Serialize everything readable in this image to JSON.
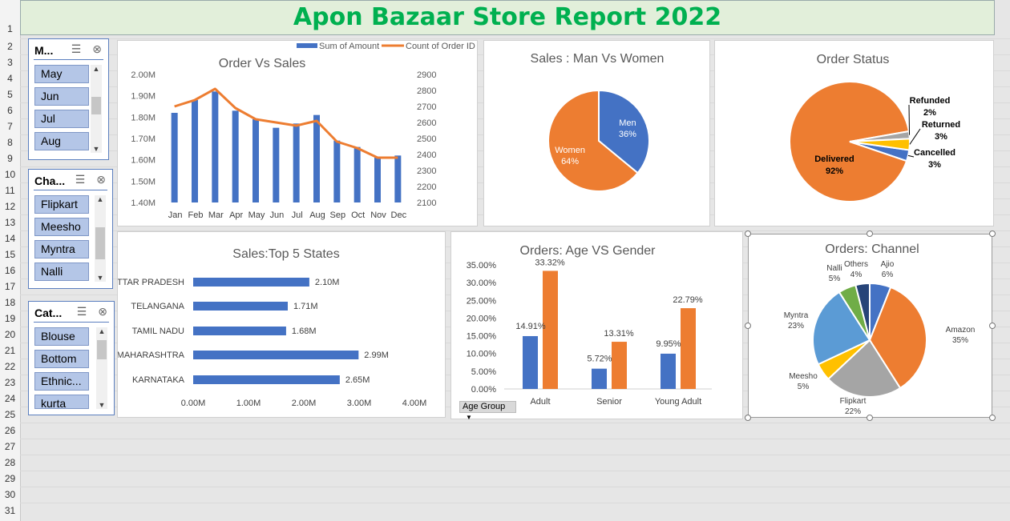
{
  "sheet": {
    "title": "Apon Bazaar Store Report 2022",
    "row_numbers": [
      "1",
      "2",
      "3",
      "4",
      "5",
      "6",
      "7",
      "8",
      "9",
      "10",
      "11",
      "12",
      "13",
      "14",
      "15",
      "16",
      "17",
      "18",
      "19",
      "20",
      "21",
      "22",
      "23",
      "24",
      "25",
      "26",
      "27",
      "28",
      "29",
      "30",
      "31"
    ]
  },
  "slicers": {
    "month": {
      "header": "M...",
      "items": [
        "May",
        "Jun",
        "Jul",
        "Aug"
      ]
    },
    "channel": {
      "header": "Cha...",
      "items": [
        "Flipkart",
        "Meesho",
        "Myntra",
        "Nalli"
      ]
    },
    "category": {
      "header": "Cat...",
      "items": [
        "Blouse",
        "Bottom",
        "Ethnic...",
        "kurta"
      ]
    }
  },
  "age_group_button": "Age Group",
  "colors": {
    "blue": "#4472c4",
    "orange": "#ed7d31",
    "gray": "#a5a5a5",
    "yellow": "#ffc000",
    "lightblue": "#5b9bd5",
    "green": "#70ad47",
    "navy": "#264478",
    "title_green": "#00b050"
  },
  "chart_data": [
    {
      "id": "order_vs_sales",
      "type": "bar",
      "title": "Order Vs Sales",
      "categories": [
        "Jan",
        "Feb",
        "Mar",
        "Apr",
        "May",
        "Jun",
        "Jul",
        "Aug",
        "Sep",
        "Oct",
        "Nov",
        "Dec"
      ],
      "series": [
        {
          "name": "Sum of Amount",
          "type": "bar",
          "axis": "left",
          "values": [
            1.82,
            1.88,
            1.92,
            1.83,
            1.79,
            1.75,
            1.77,
            1.81,
            1.69,
            1.66,
            1.61,
            1.62
          ]
        },
        {
          "name": "Count of Order ID",
          "type": "line",
          "axis": "right",
          "values": [
            2700,
            2740,
            2810,
            2690,
            2620,
            2600,
            2580,
            2610,
            2480,
            2440,
            2380,
            2380
          ]
        }
      ],
      "ylim_left": [
        1.4,
        2.0
      ],
      "ytick_labels_left": [
        "1.40M",
        "1.50M",
        "1.60M",
        "1.70M",
        "1.80M",
        "1.90M",
        "2.00M"
      ],
      "ylim_right": [
        2100,
        2900
      ],
      "ytick_labels_right": [
        "2100",
        "2200",
        "2300",
        "2400",
        "2500",
        "2600",
        "2700",
        "2800",
        "2900"
      ],
      "legend": "top-right"
    },
    {
      "id": "man_vs_women",
      "type": "pie",
      "title": "Sales : Man Vs Women",
      "labels": [
        "Men",
        "Women"
      ],
      "values": [
        36,
        64
      ],
      "value_labels": [
        "36%",
        "64%"
      ]
    },
    {
      "id": "order_status",
      "type": "pie",
      "title": "Order Status",
      "labels": [
        "Cancelled",
        "Delivered",
        "Refunded",
        "Returned"
      ],
      "values": [
        3,
        92,
        2,
        3
      ],
      "value_labels": [
        "3%",
        "92%",
        "2%",
        "3%"
      ]
    },
    {
      "id": "top5_states",
      "type": "bar",
      "orientation": "horizontal",
      "title": "Sales:Top 5 States",
      "categories": [
        "UTTAR PRADESH",
        "TELANGANA",
        "TAMIL NADU",
        "MAHARASHTRA",
        "KARNATAKA"
      ],
      "values": [
        2.1,
        1.71,
        1.68,
        2.99,
        2.65
      ],
      "value_labels": [
        "2.10M",
        "1.71M",
        "1.68M",
        "2.99M",
        "2.65M"
      ],
      "xlim": [
        0,
        4
      ],
      "xtick_labels": [
        "0.00M",
        "1.00M",
        "2.00M",
        "3.00M",
        "4.00M"
      ]
    },
    {
      "id": "age_vs_gender",
      "type": "bar",
      "title": "Orders: Age VS Gender",
      "categories": [
        "Adult",
        "Senior",
        "Young Adult"
      ],
      "series": [
        {
          "values": [
            14.91,
            5.72,
            9.95
          ],
          "value_labels": [
            "14.91%",
            "5.72%",
            "9.95%"
          ]
        },
        {
          "values": [
            33.32,
            13.31,
            22.79
          ],
          "value_labels": [
            "33.32%",
            "13.31%",
            "22.79%"
          ]
        }
      ],
      "ylim": [
        0,
        35
      ],
      "ytick_labels": [
        "0.00%",
        "5.00%",
        "10.00%",
        "15.00%",
        "20.00%",
        "25.00%",
        "30.00%",
        "35.00%"
      ]
    },
    {
      "id": "orders_channel",
      "type": "pie",
      "title": "Orders: Channel",
      "labels": [
        "Ajio",
        "Amazon",
        "Flipkart",
        "Meesho",
        "Myntra",
        "Nalli",
        "Others"
      ],
      "values": [
        6,
        35,
        22,
        5,
        23,
        5,
        4
      ],
      "value_labels": [
        "6%",
        "35%",
        "22%",
        "5%",
        "23%",
        "5%",
        "4%"
      ]
    }
  ]
}
